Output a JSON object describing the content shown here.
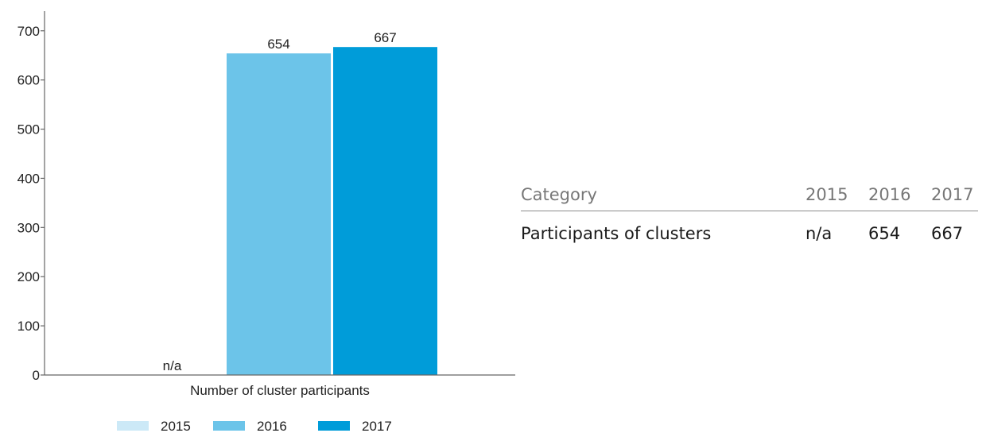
{
  "chart_data": {
    "type": "bar",
    "categories": [
      "Number of cluster participants"
    ],
    "series": [
      {
        "name": "2015",
        "values": [
          null
        ],
        "label": "n/a",
        "color": "#cce9f7"
      },
      {
        "name": "2016",
        "values": [
          654
        ],
        "label": "654",
        "color": "#6cc4e9"
      },
      {
        "name": "2017",
        "values": [
          667
        ],
        "label": "667",
        "color": "#009cd9"
      }
    ],
    "ylim": [
      0,
      740
    ],
    "yticks": [
      0,
      100,
      200,
      300,
      400,
      500,
      600,
      700
    ],
    "ytick_labels": [
      "0",
      "100",
      "200",
      "300",
      "400",
      "500",
      "600",
      "700"
    ],
    "xlabel": "Number of cluster participants",
    "legend": {
      "position": "bottom",
      "entries": [
        "2015",
        "2016",
        "2017"
      ]
    },
    "grid": false
  },
  "table": {
    "headers": [
      "Category",
      "2015",
      "2016",
      "2017"
    ],
    "rows": [
      [
        "Participants of clusters",
        "n/a",
        "654",
        "667"
      ]
    ]
  }
}
